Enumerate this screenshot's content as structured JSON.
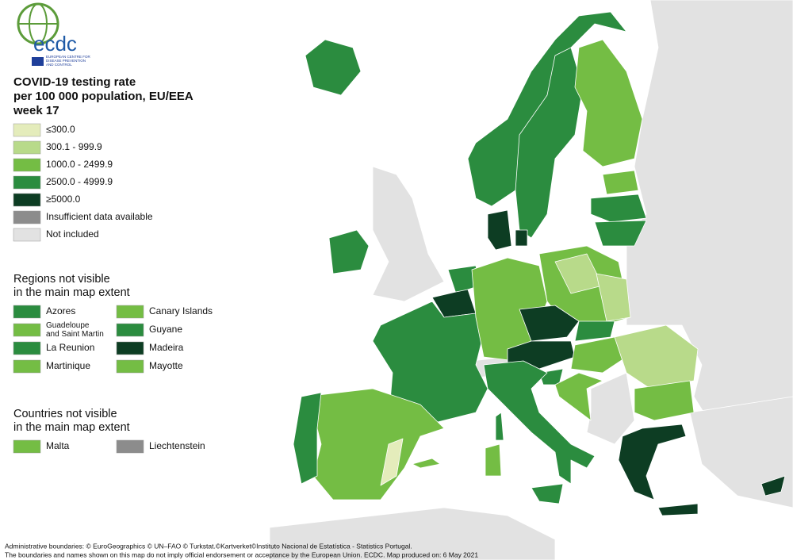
{
  "logo": {
    "name": "ecdc",
    "org": [
      "EUROPEAN CENTRE FOR",
      "DISEASE PREVENTION",
      "AND CONTROL"
    ]
  },
  "title": [
    "COVID-19 testing rate",
    "per 100 000 population, EU/EEA",
    "week 17"
  ],
  "legend": [
    {
      "label": "≤300.0",
      "color": "#e4ecbb"
    },
    {
      "label": "300.1 - 999.9",
      "color": "#b8da8a"
    },
    {
      "label": "1000.0 - 2499.9",
      "color": "#74bd44"
    },
    {
      "label": "2500.0 - 4999.9",
      "color": "#2b8c3f"
    },
    {
      "label": "≥5000.0",
      "color": "#0d3d23"
    },
    {
      "label": "Insufficient data available",
      "color": "#8c8c8c"
    },
    {
      "label": "Not included",
      "color": "#e2e2e2"
    }
  ],
  "regions_heading": [
    "Regions not visible",
    "in the main map extent"
  ],
  "regions": [
    {
      "name": [
        "Azores"
      ],
      "color": "#2b8c3f"
    },
    {
      "name": [
        "Canary Islands"
      ],
      "color": "#74bd44"
    },
    {
      "name": [
        "Guadeloupe",
        "and Saint Martin"
      ],
      "color": "#74bd44"
    },
    {
      "name": [
        "Guyane"
      ],
      "color": "#2b8c3f"
    },
    {
      "name": [
        "La Reunion"
      ],
      "color": "#2b8c3f"
    },
    {
      "name": [
        "Madeira"
      ],
      "color": "#0d3d23"
    },
    {
      "name": [
        "Martinique"
      ],
      "color": "#74bd44"
    },
    {
      "name": [
        "Mayotte"
      ],
      "color": "#74bd44"
    }
  ],
  "countries_heading": [
    "Countries not visible",
    "in the main map extent"
  ],
  "countries": [
    {
      "name": [
        "Malta"
      ],
      "color": "#74bd44"
    },
    {
      "name": [
        "Liechtenstein"
      ],
      "color": "#8c8c8c"
    }
  ],
  "footer": [
    "Administrative boundaries: © EuroGeographics © UN–FAO © Turkstat.©Kartverket©Instituto Nacional de Estatística - Statistics Portugal.",
    "The boundaries and names shown on this map do not imply official endorsement or acceptance by the European Union. ECDC. Map produced on: 6 May 2021"
  ]
}
